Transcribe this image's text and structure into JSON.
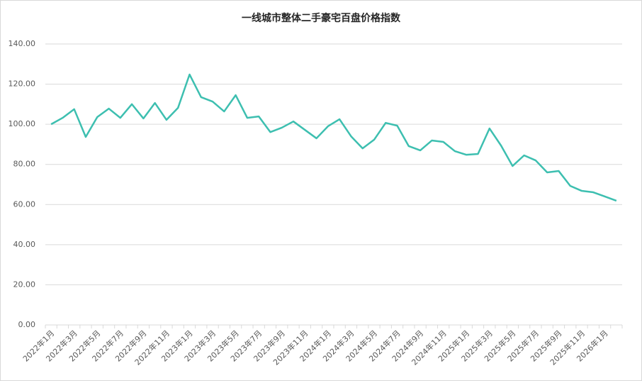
{
  "chart_data": {
    "type": "line",
    "title": "一线城市整体二手豪宅百盘价格指数",
    "categories": [
      "2022年1月",
      null,
      "2022年3月",
      null,
      "2022年5月",
      null,
      "2022年7月",
      null,
      "2022年9月",
      null,
      "2022年11月",
      null,
      "2023年1月",
      null,
      "2023年3月",
      null,
      "2023年5月",
      null,
      "2023年7月",
      null,
      "2023年9月",
      null,
      "2023年11月",
      null,
      "2024年1月",
      null,
      "2024年3月",
      null,
      "2024年5月",
      null,
      "2024年7月",
      null,
      "2024年9月",
      null,
      "2024年11月",
      null,
      "2025年1月",
      null,
      "2025年3月",
      null,
      "2025年5月",
      null,
      "2025年7月",
      null,
      "2025年9月",
      null,
      "2025年11月",
      null,
      "2026年1月",
      null
    ],
    "series": [
      {
        "color": "#3dbfb0",
        "values": [
          100,
          103.2,
          107.5,
          93.7,
          103.6,
          107.8,
          103.2,
          110,
          102.9,
          110.6,
          102.2,
          108.2,
          124.8,
          113.5,
          111.3,
          106.4,
          114.5,
          103.2,
          103.9,
          96.1,
          98.3,
          101.4,
          97.2,
          93,
          99,
          102.5,
          94,
          88,
          92.3,
          100.7,
          99.3,
          89.1,
          87,
          91.9,
          91.2,
          86.6,
          84.8,
          85.2,
          97.9,
          89.4,
          79.2,
          84.5,
          82,
          76,
          76.7,
          69.3,
          66.8,
          66.1,
          64,
          61.9
        ]
      }
    ],
    "ylim": [
      0,
      140
    ],
    "yticks": [
      {
        "value": 0,
        "label": "0.00"
      },
      {
        "value": 20,
        "label": "20.00"
      },
      {
        "value": 40,
        "label": "40.00"
      },
      {
        "value": 60,
        "label": "60.00"
      },
      {
        "value": 80,
        "label": "80.00"
      },
      {
        "value": 100,
        "label": "100.00"
      },
      {
        "value": 120,
        "label": "120.00"
      },
      {
        "value": 140,
        "label": "140.00"
      }
    ],
    "grid": true
  }
}
